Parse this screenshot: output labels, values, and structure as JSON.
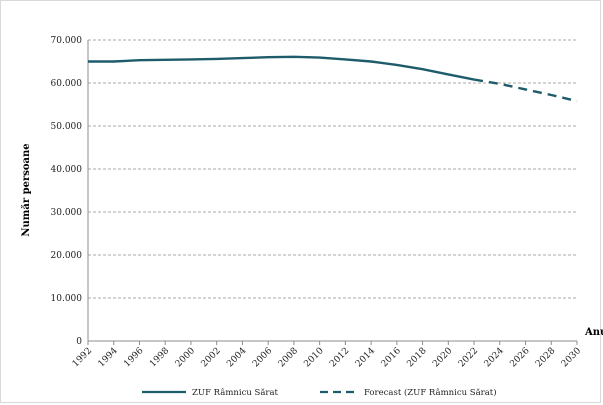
{
  "chart_data": {
    "type": "line",
    "title": "",
    "ylabel": "Număr persoane",
    "xlabel": "Anul",
    "ylim": [
      0,
      70000
    ],
    "y_ticks": [
      0,
      10000,
      20000,
      30000,
      40000,
      50000,
      60000,
      70000
    ],
    "y_tick_labels": [
      "0",
      "10.000",
      "20.000",
      "30.000",
      "40.000",
      "50.000",
      "60.000",
      "70.000"
    ],
    "x_ticks": [
      1992,
      1994,
      1996,
      1998,
      2000,
      2002,
      2004,
      2006,
      2008,
      2010,
      2012,
      2014,
      2016,
      2018,
      2020,
      2022,
      2024,
      2026,
      2028,
      2030
    ],
    "xlim": [
      1992,
      2030
    ],
    "grid": true,
    "legend_position": "bottom",
    "colors": {
      "series": "#1f5c6b",
      "grid_dashed": "#8c8c8c",
      "axis": "#8c8c8c"
    },
    "series": [
      {
        "name": "ZUF Râmnicu Sărat",
        "style": "solid",
        "x": [
          1992,
          1994,
          1996,
          1998,
          2000,
          2002,
          2004,
          2006,
          2008,
          2010,
          2012,
          2014,
          2016,
          2018,
          2020,
          2022
        ],
        "values": [
          65000,
          65000,
          65300,
          65400,
          65500,
          65600,
          65800,
          66000,
          66100,
          65900,
          65500,
          65000,
          64200,
          63200,
          62000,
          60800
        ]
      },
      {
        "name": "Forecast (ZUF Râmnicu Sărat)",
        "style": "dashed",
        "x": [
          2022,
          2024,
          2026,
          2028,
          2030
        ],
        "values": [
          60800,
          59800,
          58500,
          57200,
          55800
        ]
      }
    ]
  }
}
